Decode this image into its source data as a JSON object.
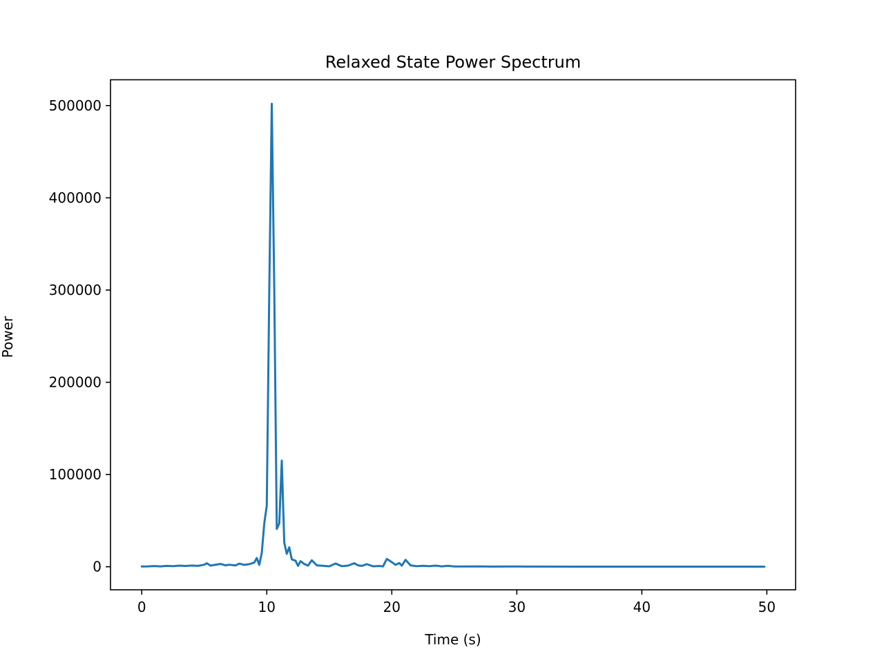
{
  "chart_data": {
    "type": "line",
    "title": "Relaxed State Power Spectrum",
    "xlabel": "Time (s)",
    "ylabel": "Power",
    "xlim": [
      -2.5,
      52.3
    ],
    "ylim": [
      -25000,
      528000
    ],
    "xticks": [
      0,
      10,
      20,
      30,
      40,
      50
    ],
    "yticks": [
      0,
      100000,
      200000,
      300000,
      400000,
      500000
    ],
    "grid": false,
    "legend": "none",
    "series": [
      {
        "color": "#1f77b4",
        "x": [
          0,
          0.5,
          1,
          1.5,
          2,
          2.5,
          3,
          3.5,
          4,
          4.5,
          5,
          5.2,
          5.5,
          6,
          6.3,
          6.7,
          7,
          7.5,
          7.8,
          8.2,
          8.6,
          9,
          9.2,
          9.4,
          9.6,
          9.8,
          10,
          10.2,
          10.4,
          10.6,
          10.8,
          11,
          11.2,
          11.4,
          11.6,
          11.8,
          12,
          12.3,
          12.5,
          12.7,
          13,
          13.3,
          13.6,
          14,
          14.5,
          15,
          15.5,
          16,
          16.5,
          17,
          17.3,
          17.6,
          18,
          18.5,
          19,
          19.3,
          19.6,
          20,
          20.3,
          20.6,
          20.8,
          21.1,
          21.5,
          22,
          22.5,
          23,
          23.5,
          24,
          24.5,
          25,
          26,
          27,
          28,
          30,
          32,
          35,
          40,
          45,
          49.8
        ],
        "y": [
          300,
          400,
          700,
          400,
          900,
          600,
          1200,
          800,
          1300,
          900,
          2200,
          3800,
          1200,
          2400,
          3000,
          1500,
          2200,
          1400,
          3400,
          2000,
          2800,
          4500,
          9500,
          2000,
          15000,
          47000,
          66000,
          300000,
          502000,
          300000,
          41000,
          47000,
          115000,
          26000,
          14000,
          21000,
          8000,
          6500,
          1000,
          6000,
          3000,
          1200,
          7000,
          1500,
          1000,
          500,
          3500,
          600,
          1200,
          3800,
          1500,
          900,
          2800,
          500,
          800,
          400,
          8500,
          5000,
          2000,
          4000,
          1200,
          7500,
          1500,
          600,
          1000,
          600,
          1200,
          400,
          1000,
          300,
          250,
          400,
          200,
          250,
          150,
          100,
          80,
          60,
          50
        ]
      }
    ]
  }
}
